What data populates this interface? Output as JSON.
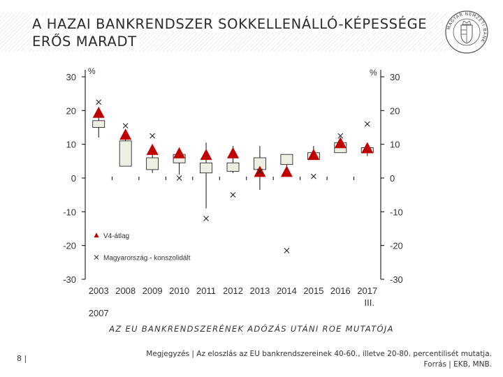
{
  "header": {
    "title_line1": "A HAZAI BANKRENDSZER SOKKELLENÁLLÓ-KÉPESSÉGE",
    "title_line2": "ERŐS MARADT",
    "logo_text": "MAGYAR NEMZETI BANK"
  },
  "colors": {
    "triangle": "#c00000",
    "box_fill": "#eeeee2",
    "text": "#333333"
  },
  "chart_data": {
    "type": "box",
    "title": "AZ EU BANKRENDSZERÉNEK ADÓZÁS UTÁNI ROE MUTATÓJA",
    "ylabel_left": "%",
    "ylabel_right": "%",
    "ylim": [
      -30,
      30
    ],
    "yticks": [
      30,
      20,
      10,
      0,
      -10,
      -20,
      -30
    ],
    "categories": [
      "2003",
      "2008",
      "2009",
      "2010",
      "2011",
      "2012",
      "2013",
      "2014",
      "2015",
      "2016",
      "2017"
    ],
    "category_sublabels": [
      "2007",
      "",
      "",
      "",
      "",
      "",
      "",
      "",
      "",
      "",
      "III."
    ],
    "boxes": [
      {
        "low": 12,
        "q_low": 15,
        "q_high": 17,
        "high": 19
      },
      {
        "low": 3.5,
        "q_low": 3.5,
        "q_high": 11,
        "high": 13
      },
      {
        "low": 1.5,
        "q_low": 2.5,
        "q_high": 6,
        "high": 9.5
      },
      {
        "low": 1,
        "q_low": 4.5,
        "q_high": 7,
        "high": 9
      },
      {
        "low": -9,
        "q_low": 1.5,
        "q_high": 4.5,
        "high": 10.5
      },
      {
        "low": 1.5,
        "q_low": 2,
        "q_high": 4.5,
        "high": 9.5
      },
      {
        "low": -3.5,
        "q_low": 2.5,
        "q_high": 6,
        "high": 9.5
      },
      {
        "low": 1,
        "q_low": 4,
        "q_high": 7,
        "high": 7
      },
      {
        "low": 5.5,
        "q_low": 5.5,
        "q_high": 7.5,
        "high": 9.5
      },
      {
        "low": 7.5,
        "q_low": 7.5,
        "q_high": 10.5,
        "high": 12
      },
      {
        "low": 6.5,
        "q_low": 7.5,
        "q_high": 9,
        "high": 10.5
      }
    ],
    "series": [
      {
        "name": "V4-átlag",
        "marker": "triangle",
        "values": [
          19.5,
          13,
          8.5,
          7.5,
          7,
          7.5,
          2,
          2,
          7,
          10.5,
          9
        ]
      },
      {
        "name": "Magyarország - konszolidált",
        "marker": "x",
        "values": [
          22.5,
          15.5,
          12.5,
          0,
          -12,
          -5,
          2,
          -21.5,
          0.5,
          12.5,
          16
        ]
      }
    ],
    "legend": [
      "V4-átlag",
      "Magyarország - konszolidált"
    ],
    "legend_position": "bottom-left inside"
  },
  "footer": {
    "note": "Megjegyzés | Az eloszlás az EU bankrendszereinek 40-60., illetve 20-80. percentilisét mutatja.",
    "source": "Forrás | EKB, MNB.",
    "page_number": "8 |"
  }
}
